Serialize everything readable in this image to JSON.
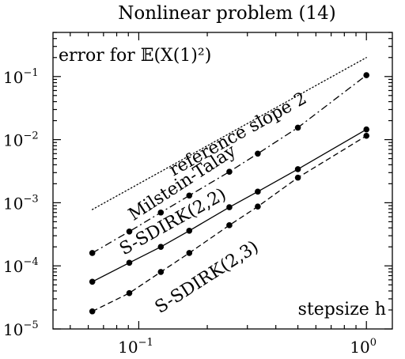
{
  "chart_data": {
    "type": "line",
    "title": "Nonlinear problem (14)",
    "ylabel": "error for 𝔼(X(1)²)",
    "xlabel": "stepsize h",
    "xscale": "log",
    "yscale": "log",
    "xlim": [
      0.042,
      1.3
    ],
    "ylim": [
      1e-05,
      0.5
    ],
    "grid": false,
    "x_ticks": [
      {
        "value": 0.1,
        "base": "10",
        "exp": "−1"
      },
      {
        "value": 1,
        "base": "10",
        "exp": "0"
      }
    ],
    "y_ticks": [
      {
        "value": 1e-05,
        "base": "10",
        "exp": "−5"
      },
      {
        "value": 0.0001,
        "base": "10",
        "exp": "−4"
      },
      {
        "value": 0.001,
        "base": "10",
        "exp": "−3"
      },
      {
        "value": 0.01,
        "base": "10",
        "exp": "−2"
      },
      {
        "value": 0.1,
        "base": "10",
        "exp": "−1"
      }
    ],
    "series": [
      {
        "name": "reference slope 2",
        "style": "dotted",
        "markers": false,
        "x": [
          0.0625,
          1.0
        ],
        "y": [
          0.00078,
          0.2
        ],
        "label": {
          "text": "reference slope 2",
          "x": 0.28,
          "y": 0.0102
        }
      },
      {
        "name": "Milstein-Talay",
        "style": "dashdot",
        "markers": true,
        "x": [
          0.0625,
          0.0909,
          0.125,
          0.1667,
          0.25,
          0.3333,
          0.5,
          1.0
        ],
        "y": [
          0.00016,
          0.00035,
          0.0007,
          0.0013,
          0.0031,
          0.006,
          0.0155,
          0.105
        ],
        "label": {
          "text": "Milstein-Talay",
          "x": 0.16,
          "y": 0.00175
        }
      },
      {
        "name": "S-SDIRK(2,2)",
        "style": "solid",
        "markers": true,
        "x": [
          0.0625,
          0.0909,
          0.125,
          0.1667,
          0.25,
          0.3333,
          0.5,
          1.0
        ],
        "y": [
          5.6e-05,
          0.000112,
          0.0002,
          0.00036,
          0.00085,
          0.0015,
          0.0034,
          0.0145
        ],
        "label": {
          "text": "S-SDIRK(2,2)",
          "x": 0.145,
          "y": 0.00042
        }
      },
      {
        "name": "S-SDIRK(2,3)",
        "style": "dashed",
        "markers": true,
        "x": [
          0.0625,
          0.0909,
          0.125,
          0.1667,
          0.25,
          0.3333,
          0.5,
          1.0
        ],
        "y": [
          1.9e-05,
          3.7e-05,
          8e-05,
          0.00016,
          0.00044,
          0.00087,
          0.0025,
          0.0115
        ],
        "label": {
          "text": "S-SDIRK(2,3)",
          "x": 0.205,
          "y": 5.6e-05
        }
      }
    ]
  }
}
